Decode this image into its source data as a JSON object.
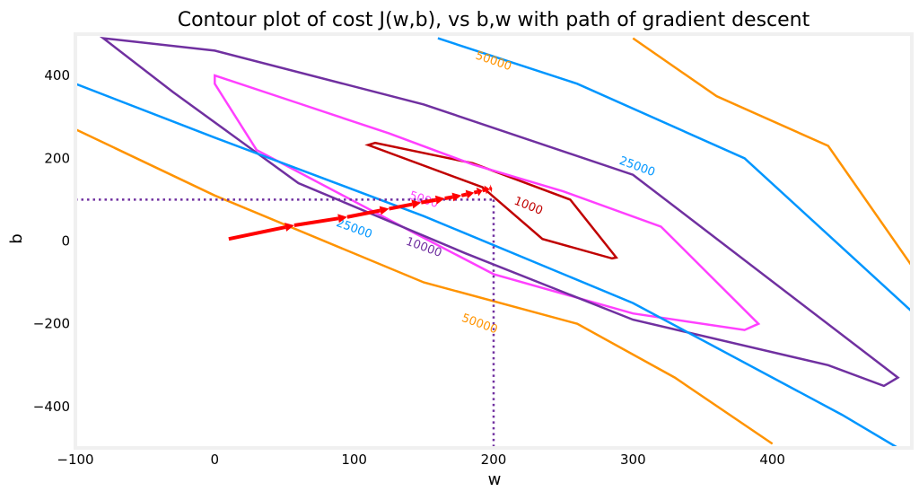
{
  "chart_data": {
    "type": "contour",
    "title": "Contour plot of cost J(w,b), vs b,w with path of gradient descent",
    "xlabel": "w",
    "ylabel": "b",
    "xlim": [
      -100,
      500
    ],
    "ylim": [
      -500,
      500
    ],
    "xticks": [
      -100,
      0,
      100,
      200,
      300,
      400
    ],
    "yticks": [
      -400,
      -200,
      0,
      200,
      400
    ],
    "xtick_labels": [
      "−100",
      "0",
      "100",
      "200",
      "300",
      "400"
    ],
    "ytick_labels": [
      "−400",
      "−200",
      "0",
      "200",
      "400"
    ],
    "grid": false,
    "colors": {
      "level_1000": "#c00000",
      "level_5000": "#ff40ff",
      "level_10000": "#7030a0",
      "level_25000": "#0096ff",
      "level_50000": "#ff9300",
      "path": "#ff0000",
      "marker": "#7030a0",
      "frame": "#f0f0f0"
    },
    "contour_levels": [
      {
        "level": 1000,
        "label": "1000",
        "color": "#c00000",
        "points": [
          [
            192,
            130
          ],
          [
            110,
            232
          ],
          [
            115,
            237
          ],
          [
            185,
            188
          ],
          [
            255,
            100
          ],
          [
            288,
            -40
          ],
          [
            285,
            -42
          ],
          [
            235,
            5
          ],
          [
            192,
            130
          ]
        ]
      },
      {
        "level": 5000,
        "label": "5000",
        "color": "#ff40ff",
        "points": [
          [
            0,
            400
          ],
          [
            60,
            333
          ],
          [
            125,
            260
          ],
          [
            185,
            185
          ],
          [
            250,
            120
          ],
          [
            320,
            35
          ],
          [
            390,
            -200
          ],
          [
            380,
            -215
          ],
          [
            300,
            -175
          ],
          [
            200,
            -80
          ],
          [
            140,
            25
          ],
          [
            30,
            220
          ],
          [
            0,
            380
          ],
          [
            0,
            400
          ]
        ]
      },
      {
        "level": 10000,
        "label": "10000",
        "color": "#7030a0",
        "points": [
          [
            -80,
            490
          ],
          [
            0,
            460
          ],
          [
            150,
            330
          ],
          [
            300,
            160
          ],
          [
            490,
            -330
          ],
          [
            480,
            -350
          ],
          [
            440,
            -300
          ],
          [
            300,
            -190
          ],
          [
            180,
            -30
          ],
          [
            60,
            140
          ],
          [
            -30,
            360
          ],
          [
            -80,
            490
          ]
        ]
      },
      {
        "level": 25000,
        "label": "25000",
        "color": "#0096ff",
        "points_a": [
          [
            -100,
            380
          ],
          [
            0,
            250
          ],
          [
            150,
            60
          ],
          [
            300,
            -150
          ],
          [
            450,
            -420
          ],
          [
            490,
            -500
          ]
        ],
        "points_b": [
          [
            160,
            490
          ],
          [
            260,
            380
          ],
          [
            380,
            200
          ],
          [
            500,
            -170
          ]
        ]
      },
      {
        "level": 50000,
        "label": "50000",
        "color": "#ff9300",
        "points_a": [
          [
            -100,
            270
          ],
          [
            0,
            110
          ],
          [
            150,
            -100
          ],
          [
            260,
            -200
          ],
          [
            330,
            -330
          ],
          [
            400,
            -490
          ]
        ],
        "points_b": [
          [
            300,
            490
          ],
          [
            360,
            350
          ],
          [
            440,
            230
          ],
          [
            500,
            -60
          ]
        ]
      }
    ],
    "gradient_descent_path": {
      "color": "#ff0000",
      "points": [
        [
          10,
          5
        ],
        [
          57,
          38
        ],
        [
          95,
          58
        ],
        [
          125,
          78
        ],
        [
          148,
          93
        ],
        [
          165,
          103
        ],
        [
          177,
          110
        ],
        [
          186,
          117
        ],
        [
          192,
          122
        ],
        [
          197,
          126
        ],
        [
          199,
          127
        ]
      ]
    },
    "final_marker": {
      "w": 200,
      "b": 100,
      "style": "dotted",
      "color": "#7030a0"
    }
  }
}
